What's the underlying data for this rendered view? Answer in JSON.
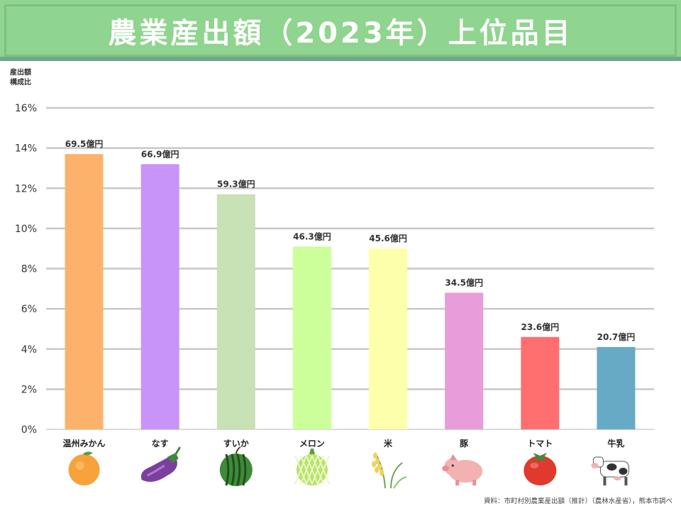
{
  "title": "農業産出額（2023年）上位品目",
  "source": "資料：市町村別農業産出額（推計）（農林水産省），熊本市調べ",
  "chart_data": {
    "type": "bar",
    "title": "農業産出額（2023年）上位品目",
    "ylabel": "産出額\n構成比",
    "xlabel": "",
    "ylim": [
      0,
      16
    ],
    "yticks": [
      0,
      2,
      4,
      6,
      8,
      10,
      12,
      14,
      16
    ],
    "ytick_suffix": "%",
    "grid": true,
    "categories": [
      "温州みかん",
      "なす",
      "すいか",
      "メロン",
      "米",
      "豚",
      "トマト",
      "牛乳"
    ],
    "values": [
      13.7,
      13.2,
      11.7,
      9.1,
      9.0,
      6.8,
      4.6,
      4.1
    ],
    "data_labels": [
      "69.5億円",
      "66.9億円",
      "59.3億円",
      "46.3億円",
      "45.6億円",
      "34.5億円",
      "23.6億円",
      "20.7億円"
    ],
    "colors": [
      "#fdb26b",
      "#c994f9",
      "#c8e1b5",
      "#ccff99",
      "#fdffaa",
      "#e89cd9",
      "#ff6f6f",
      "#66aac6"
    ],
    "icons": [
      "mandarin-icon",
      "eggplant-icon",
      "watermelon-icon",
      "melon-icon",
      "rice-icon",
      "pig-icon",
      "tomato-icon",
      "cow-icon"
    ]
  }
}
